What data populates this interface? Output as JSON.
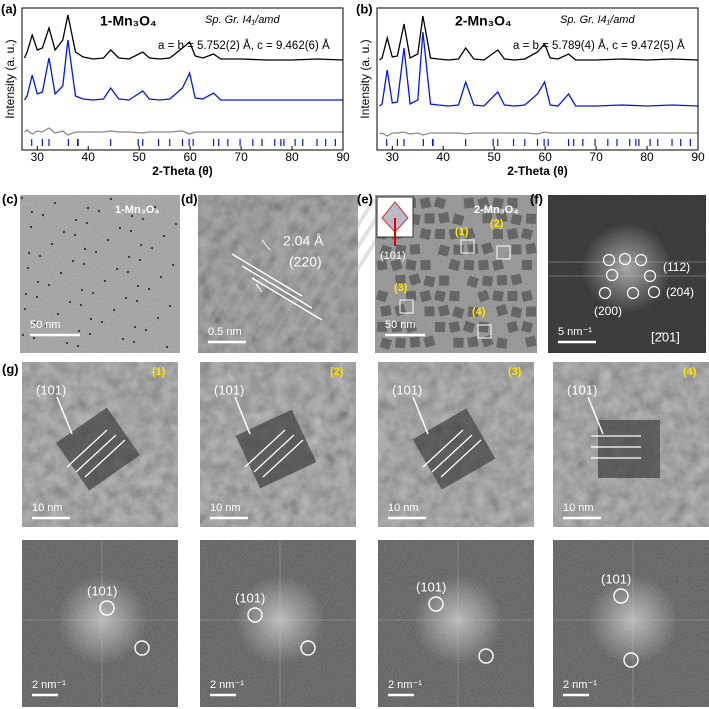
{
  "chart_data": [
    {
      "type": "line",
      "label": "(a)",
      "title": "1-Mn₃O₄",
      "subtitle": "Sp. Gr. I4₁/amd",
      "annotation": "a = b = 5.752(2) Å, c = 9.462(6) Å",
      "x_label": "2-Theta (θ)",
      "y_label": "Intensity (a. u.)",
      "xlim": [
        27,
        90
      ],
      "xticks": [
        30,
        40,
        50,
        60,
        70,
        80,
        90
      ],
      "ylim": [
        -30,
        112
      ],
      "x": [
        27.5,
        28,
        29,
        30,
        31,
        32.3,
        33.5,
        35,
        36,
        37.5,
        39,
        41,
        43,
        44.4,
        46,
        48,
        50.7,
        52,
        54,
        56,
        58.5,
        59.9,
        61,
        62.5,
        64.6,
        66,
        70,
        75,
        80,
        85,
        90
      ],
      "series": [
        {
          "color": "#000000",
          "values": [
            62,
            68,
            85,
            70,
            72,
            92,
            70,
            80,
            105,
            68,
            63,
            61,
            62,
            70,
            62,
            61,
            68,
            62,
            61,
            62,
            72,
            78,
            64,
            62,
            66,
            61,
            61,
            60,
            60,
            61,
            60
          ]
        },
        {
          "color": "#0019e6",
          "values": [
            20,
            24,
            45,
            26,
            28,
            62,
            26,
            34,
            80,
            24,
            21,
            20,
            21,
            32,
            21,
            20,
            29,
            21,
            20,
            21,
            32,
            47,
            22,
            21,
            27,
            20,
            20,
            20,
            20,
            20,
            20
          ]
        },
        {
          "color": "#888888",
          "values": [
            -12,
            -10,
            -14,
            -11,
            -12,
            -8,
            -13,
            -11,
            -15,
            -12,
            -12,
            -12,
            -12,
            -11,
            -12,
            -12,
            -13,
            -12,
            -12,
            -12,
            -11,
            -14,
            -12,
            -12,
            -12,
            -12,
            -12,
            -12,
            -12,
            -12,
            -12
          ]
        }
      ],
      "bragg_color": "#0019e6",
      "bragg_positions": [
        28.9,
        31.0,
        32.3,
        36.1,
        37.9,
        38.0,
        44.4,
        49.8,
        50.7,
        53.8,
        56.0,
        58.5,
        59.8,
        60.6,
        64.6,
        65.6,
        67.4,
        69.8,
        72.3,
        74.1,
        76.6,
        77.8,
        78.4,
        80.6,
        82.1,
        84.9,
        86.6,
        88.5
      ]
    },
    {
      "type": "line",
      "label": "(b)",
      "title": "2-Mn₃O₄",
      "subtitle": "Sp. Gr. I4₁/amd",
      "annotation": "a = b = 5.789(4) Å, c = 9.472(5) Å",
      "x_label": "2-Theta (θ)",
      "y_label": "Intensity (a. u.)",
      "xlim": [
        27,
        90
      ],
      "xticks": [
        30,
        40,
        50,
        60,
        70,
        80,
        90
      ],
      "ylim": [
        -30,
        112
      ],
      "x": [
        27.5,
        28,
        29,
        30,
        31,
        32.3,
        33.5,
        35,
        36,
        37.5,
        39,
        41,
        43,
        44.4,
        46,
        48,
        50.7,
        52,
        54,
        56,
        58.5,
        59.9,
        61,
        62.5,
        64.6,
        66,
        70,
        75,
        80,
        85,
        90
      ],
      "series": [
        {
          "color": "#000000",
          "values": [
            60,
            62,
            82,
            63,
            64,
            96,
            62,
            66,
            104,
            62,
            61,
            60,
            61,
            72,
            61,
            60,
            70,
            61,
            60,
            61,
            68,
            76,
            62,
            61,
            66,
            60,
            60,
            61,
            60,
            61,
            60
          ]
        },
        {
          "color": "#0019e6",
          "values": [
            14,
            16,
            50,
            17,
            18,
            72,
            16,
            20,
            88,
            16,
            15,
            14,
            15,
            38,
            15,
            14,
            28,
            15,
            14,
            15,
            26,
            38,
            15,
            14,
            26,
            14,
            14,
            15,
            14,
            15,
            14
          ]
        },
        {
          "color": "#888888",
          "values": [
            -14,
            -13,
            -16,
            -13,
            -13,
            -12,
            -14,
            -13,
            -15,
            -13,
            -13,
            -13,
            -13,
            -14,
            -13,
            -13,
            -13,
            -13,
            -13,
            -13,
            -14,
            -12,
            -13,
            -13,
            -13,
            -13,
            -13,
            -13,
            -13,
            -13,
            -13
          ]
        }
      ],
      "bragg_color": "#0019e6",
      "bragg_positions": [
        28.9,
        31.0,
        32.3,
        36.1,
        37.9,
        38.0,
        44.4,
        49.8,
        50.7,
        53.8,
        56.0,
        58.5,
        59.8,
        60.6,
        64.6,
        65.6,
        67.4,
        69.8,
        72.3,
        74.1,
        76.6,
        77.8,
        78.4,
        80.6,
        82.1,
        84.9,
        86.6,
        88.5
      ]
    }
  ],
  "panels": {
    "c": {
      "label": "(c)",
      "title": "1-Mn₃O₄",
      "scale": "50 nm"
    },
    "d": {
      "label": "(d)",
      "spacing": "2.04 Å",
      "plane": "(220)",
      "scale": "0.5 nm"
    },
    "e": {
      "label": "(e)",
      "title": "2-Mn₃O₄",
      "axis": "(101)",
      "boxes": [
        "(1)",
        "(2)",
        "(3)",
        "(4)"
      ],
      "scale": "50 nm"
    },
    "f": {
      "label": "(f)",
      "spots": [
        "(112)",
        "(204)",
        "(200)"
      ],
      "zone": "[2̄01]",
      "scale": "5 nm⁻¹"
    },
    "g": {
      "label": "(g)",
      "particles": [
        {
          "tag": "(1)",
          "plane": "(101)",
          "scale": "10 nm",
          "fft_plane": "(101)",
          "fft_scale": "2 nm⁻¹"
        },
        {
          "tag": "(2)",
          "plane": "(101)",
          "scale": "10 nm",
          "fft_plane": "(101)",
          "fft_scale": "2 nm⁻¹"
        },
        {
          "tag": "(3)",
          "plane": "(101)",
          "scale": "10 nm",
          "fft_plane": "(101)",
          "fft_scale": "2 nm⁻¹"
        },
        {
          "tag": "(4)",
          "plane": "(101)",
          "scale": "10 nm",
          "fft_plane": "(101)",
          "fft_scale": "2 nm⁻¹"
        }
      ]
    }
  }
}
